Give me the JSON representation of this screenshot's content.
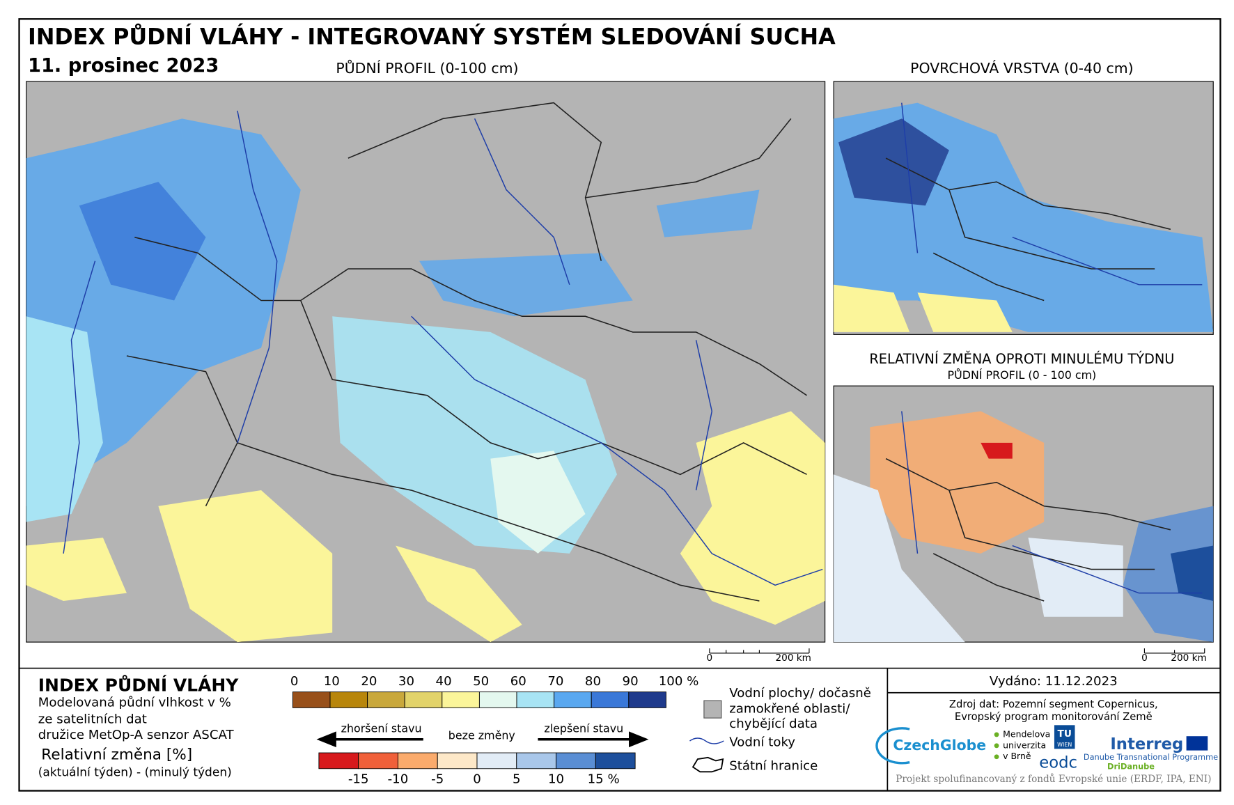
{
  "header": {
    "title": "INDEX PŮDNÍ VLÁHY - INTEGROVANÝ SYSTÉM SLEDOVÁNÍ SUCHA",
    "date": "11. prosinec 2023"
  },
  "main_map": {
    "label": "PŮDNÍ PROFIL (0-100 cm)",
    "scale_start": "0",
    "scale_end": "200 km"
  },
  "surface_map": {
    "label": "POVRCHOVÁ VRSTVA (0-40 cm)"
  },
  "change_map": {
    "label": "RELATIVNÍ ZMĚNA OPROTI MINULÉMU TÝDNU",
    "sublabel": "PŮDNÍ PROFIL (0 - 100 cm)",
    "scale_start": "0",
    "scale_end": "200 km"
  },
  "legend": {
    "title": "INDEX PŮDNÍ VLÁHY",
    "description": [
      "Modelovaná půdní vlhkost v %",
      "ze satelitních dat",
      "družice MetOp-A senzor ASCAT"
    ],
    "change_title": "Relativní změna [%]",
    "change_subtitle": "(aktuální týden) - (minulý týden)",
    "index_labels": [
      "0",
      "10",
      "20",
      "30",
      "40",
      "50",
      "60",
      "70",
      "80",
      "90",
      "100 %"
    ],
    "index_colors": [
      "#98501a",
      "#b8860b",
      "#c9a83c",
      "#e2d36a",
      "#fbf59a",
      "#e4f8ef",
      "#a8e4f4",
      "#5aa8f0",
      "#3a78d8",
      "#1f3a8c"
    ],
    "worse": "zhoršení stavu",
    "no_change": "beze změny",
    "better": "zlepšení stavu",
    "change_labels": [
      "-15",
      "-10",
      "-5",
      "0",
      "5",
      "10",
      "15 %"
    ],
    "change_colors": [
      "#d7191c",
      "#f0603a",
      "#fbab6c",
      "#fde8c8",
      "#e2ecf6",
      "#a9c7ea",
      "#5a8ed4",
      "#1d4f9c"
    ],
    "water_bodies": [
      "Vodní plochy/ dočasně",
      "zamokřené oblasti/",
      "chybějící data"
    ],
    "rivers": "Vodní toky",
    "borders": "Státní hranice"
  },
  "info": {
    "issued": "Vydáno: 11.12.2023",
    "source": [
      "Zdroj dat: Pozemní segment Copernicus,",
      "Evropský program monitorování Země"
    ],
    "logos": {
      "czechglobe": "CzechGlobe",
      "mendel": [
        "Mendelova",
        "univerzita",
        "v Brně"
      ],
      "tu": "TU",
      "wien": "WIEN",
      "eodc": "eodc",
      "interreg": "Interreg",
      "programme": "Danube Transnational Programme",
      "dridanube": "DriDanube"
    },
    "footer": "Projekt spolufinancovaný z fondů Evropské unie (ERDF, IPA, ENI)"
  }
}
